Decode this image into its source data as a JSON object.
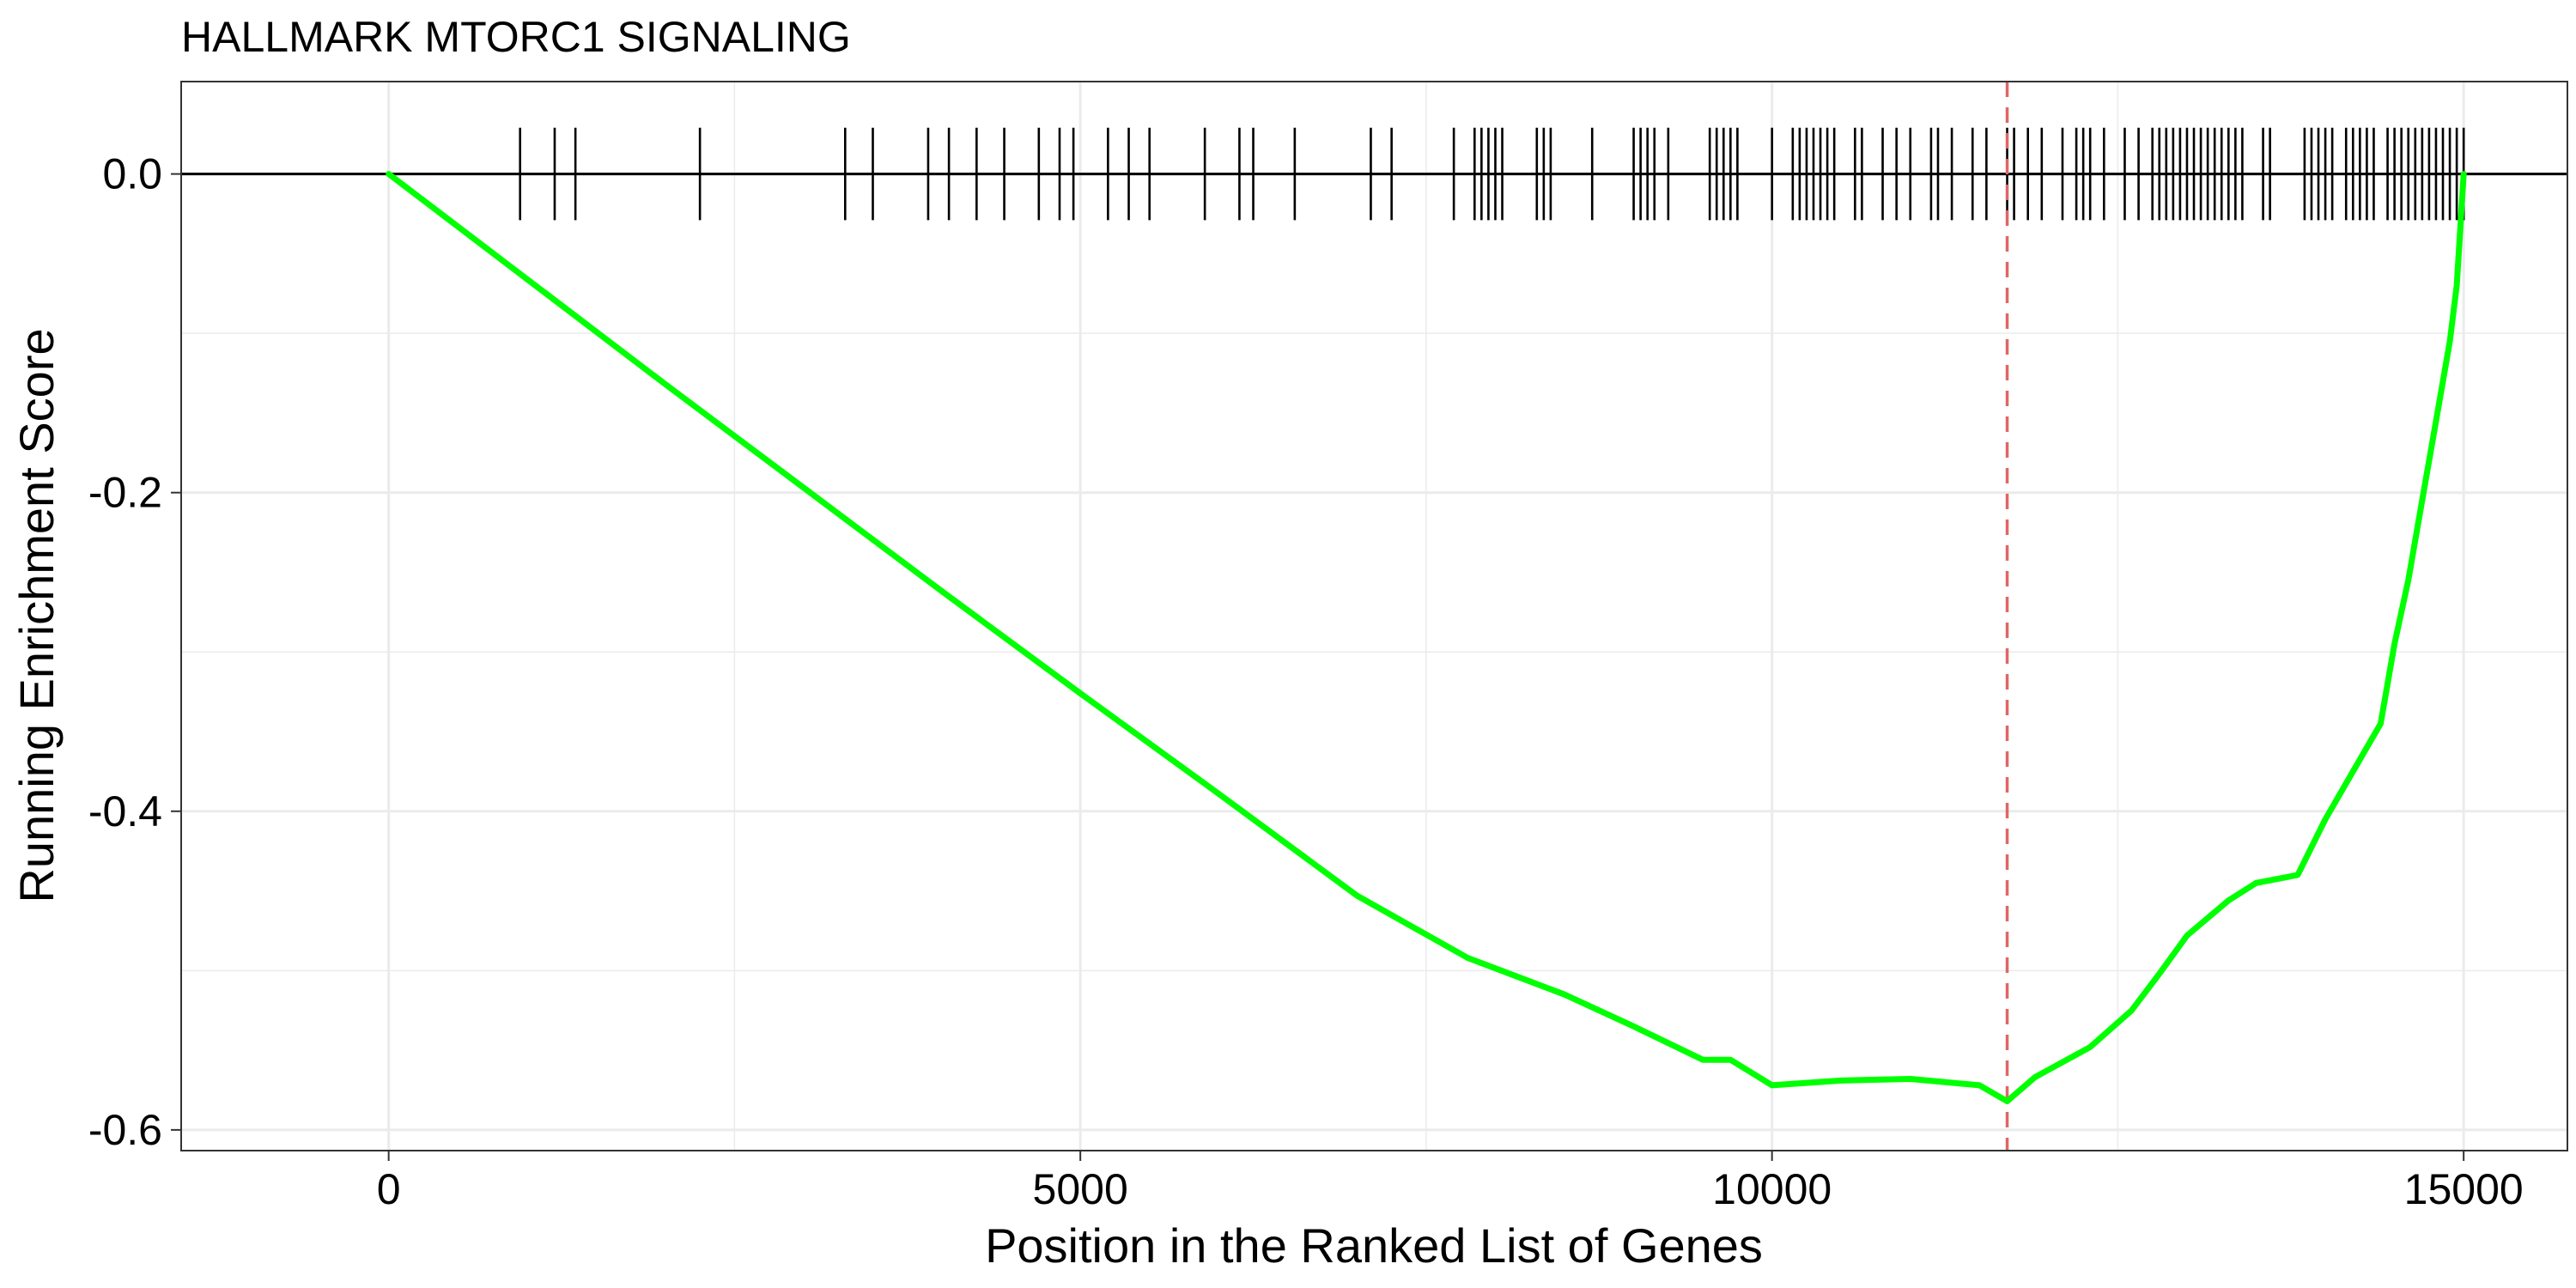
{
  "chart_data": {
    "type": "line",
    "title": "HALLMARK MTORC1 SIGNALING",
    "xlabel": "Position in the Ranked List of Genes",
    "ylabel": "Running Enrichment Score",
    "xlim": [
      -1500,
      15750
    ],
    "ylim": [
      -0.613,
      0.058
    ],
    "x_ticks": [
      {
        "value": 0,
        "label": "0"
      },
      {
        "value": 5000,
        "label": "5000"
      },
      {
        "value": 10000,
        "label": "10000"
      },
      {
        "value": 15000,
        "label": "15000"
      }
    ],
    "y_ticks": [
      {
        "value": 0.0,
        "label": "0.0"
      },
      {
        "value": -0.2,
        "label": "-0.2"
      },
      {
        "value": -0.4,
        "label": "-0.4"
      },
      {
        "value": -0.6,
        "label": "-0.6"
      }
    ],
    "grid": true,
    "zero_line": 0,
    "peak_position": 11700,
    "colors": {
      "line": "#00ff00",
      "peak": "#e06666",
      "hits": "#000000",
      "grid": "#ebebeb",
      "border": "#333333"
    },
    "series": [
      {
        "x": [
          0,
          1000,
          2000,
          3000,
          4000,
          5000,
          6000,
          7000,
          7800,
          8500,
          9000,
          9500,
          9700,
          10000,
          10500,
          11000,
          11500,
          11700,
          11900,
          12300,
          12600,
          12800,
          13000,
          13300,
          13500,
          13800,
          14000,
          14200,
          14400,
          14500,
          14600,
          14700,
          14800,
          14900,
          14950,
          15000
        ],
        "y": [
          0.0,
          -0.066,
          -0.132,
          -0.197,
          -0.262,
          -0.326,
          -0.389,
          -0.453,
          -0.492,
          -0.515,
          -0.535,
          -0.556,
          -0.556,
          -0.572,
          -0.569,
          -0.568,
          -0.572,
          -0.582,
          -0.567,
          -0.548,
          -0.525,
          -0.502,
          -0.478,
          -0.456,
          -0.445,
          -0.44,
          -0.405,
          -0.375,
          -0.345,
          -0.295,
          -0.255,
          -0.205,
          -0.155,
          -0.105,
          -0.07,
          0.0
        ]
      }
    ],
    "hits": [
      950,
      1200,
      1350,
      2250,
      3300,
      3500,
      3900,
      4050,
      4250,
      4450,
      4700,
      4850,
      4950,
      5200,
      5350,
      5500,
      5900,
      6150,
      6250,
      6550,
      7100,
      7250,
      7700,
      7850,
      7900,
      7950,
      8000,
      8050,
      8300,
      8350,
      8400,
      8700,
      9000,
      9050,
      9100,
      9150,
      9250,
      9550,
      9600,
      9650,
      9700,
      9750,
      10000,
      10150,
      10200,
      10250,
      10300,
      10350,
      10400,
      10450,
      10600,
      10650,
      10800,
      10900,
      11000,
      11150,
      11200,
      11300,
      11450,
      11550,
      11700,
      11750,
      11850,
      11950,
      12100,
      12200,
      12250,
      12300,
      12400,
      12550,
      12650,
      12750,
      12800,
      12850,
      12900,
      12950,
      13000,
      13050,
      13100,
      13150,
      13200,
      13250,
      13300,
      13350,
      13400,
      13550,
      13600,
      13850,
      13900,
      13950,
      14000,
      14050,
      14150,
      14200,
      14250,
      14300,
      14350,
      14450,
      14500,
      14550,
      14600,
      14650,
      14700,
      14750,
      14800,
      14850,
      14900,
      14950,
      15000
    ]
  }
}
